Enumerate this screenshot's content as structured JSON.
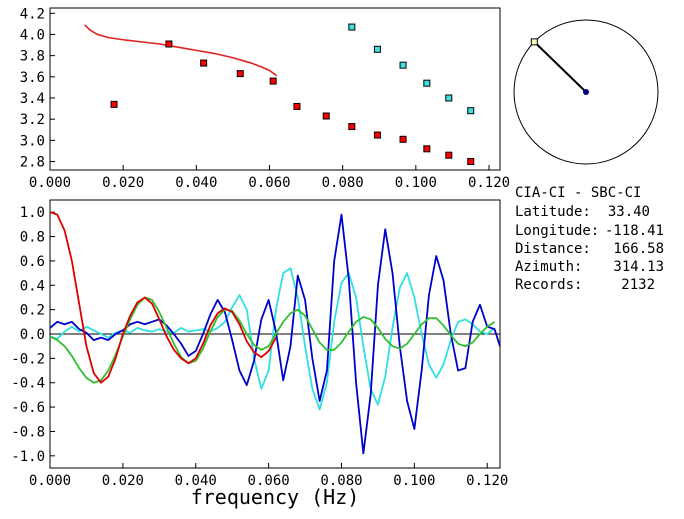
{
  "chart_data": [
    {
      "type": "scatter",
      "x_ticks": [
        "0.000",
        "0.020",
        "0.040",
        "0.060",
        "0.080",
        "0.100",
        "0.120"
      ],
      "y_ticks": [
        "2.8",
        "3.0",
        "3.2",
        "3.4",
        "3.6",
        "3.8",
        "4.0",
        "4.2"
      ],
      "xlim": [
        0.0,
        0.123
      ],
      "ylim": [
        2.72,
        4.25
      ],
      "grid": false,
      "colors": {
        "red_points": "#ff0000",
        "cyan_points": "#40e0e0",
        "curve": "#dd2222"
      },
      "series": [
        {
          "x": [
            0.0175,
            0.0325,
            0.042,
            0.052,
            0.061,
            0.0675,
            0.0755,
            0.0825,
            0.0895,
            0.0965,
            0.103,
            0.109,
            0.115
          ],
          "y": [
            3.34,
            3.91,
            3.73,
            3.63,
            3.56,
            3.32,
            3.23,
            3.13,
            3.05,
            3.01,
            2.92,
            2.86,
            2.8
          ]
        },
        {
          "x": [
            0.0825,
            0.0895,
            0.0965,
            0.103,
            0.109,
            0.115
          ],
          "y": [
            4.07,
            3.86,
            3.71,
            3.54,
            3.4,
            3.28
          ]
        },
        {
          "type": "line",
          "x": [
            0.0095,
            0.011,
            0.013,
            0.016,
            0.02,
            0.025,
            0.03,
            0.035,
            0.04,
            0.045,
            0.05,
            0.055,
            0.058,
            0.06,
            0.062
          ],
          "y": [
            4.09,
            4.04,
            4.0,
            3.97,
            3.95,
            3.93,
            3.91,
            3.88,
            3.85,
            3.82,
            3.78,
            3.73,
            3.69,
            3.66,
            3.61
          ]
        }
      ]
    },
    {
      "type": "line",
      "xlabel": "frequency (Hz)",
      "x_ticks": [
        "0.000",
        "0.020",
        "0.040",
        "0.060",
        "0.080",
        "0.100",
        "0.120"
      ],
      "y_ticks": [
        "1.0",
        "0.8",
        "0.6",
        "0.4",
        "0.2",
        "0.0",
        "-0.2",
        "-0.4",
        "-0.6",
        "-0.8",
        "-1.0"
      ],
      "xlim": [
        0.0,
        0.1235
      ],
      "ylim": [
        -1.1,
        1.1
      ],
      "grid": false,
      "zero_line": true,
      "colors": {
        "red": "#dd0000",
        "green": "#30c030",
        "blue": "#0000cc",
        "cyan": "#30e0e0"
      },
      "series": [
        {
          "x": [
            0.0,
            0.002,
            0.004,
            0.006,
            0.008,
            0.01,
            0.012,
            0.014,
            0.016,
            0.018,
            0.02,
            0.022,
            0.024,
            0.026,
            0.028,
            0.03,
            0.032,
            0.034,
            0.036,
            0.038,
            0.04,
            0.042,
            0.044,
            0.046,
            0.048,
            0.05,
            0.052,
            0.054,
            0.056,
            0.058,
            0.06,
            0.062
          ],
          "y": [
            1.0,
            0.98,
            0.85,
            0.6,
            0.25,
            -0.1,
            -0.32,
            -0.4,
            -0.35,
            -0.2,
            0.0,
            0.15,
            0.26,
            0.3,
            0.25,
            0.12,
            -0.02,
            -0.13,
            -0.2,
            -0.24,
            -0.2,
            -0.08,
            0.07,
            0.17,
            0.21,
            0.18,
            0.08,
            -0.06,
            -0.15,
            -0.19,
            -0.14,
            -0.03
          ]
        },
        {
          "x": [
            0.0,
            0.002,
            0.004,
            0.006,
            0.008,
            0.01,
            0.012,
            0.014,
            0.016,
            0.018,
            0.02,
            0.022,
            0.024,
            0.026,
            0.028,
            0.03,
            0.032,
            0.034,
            0.036,
            0.038,
            0.04,
            0.042,
            0.044,
            0.046,
            0.048,
            0.05,
            0.052,
            0.054,
            0.056,
            0.058,
            0.06,
            0.062,
            0.064,
            0.066,
            0.068,
            0.07,
            0.072,
            0.074,
            0.076,
            0.078,
            0.08,
            0.082,
            0.084,
            0.086,
            0.088,
            0.09,
            0.092,
            0.094,
            0.096,
            0.098,
            0.1,
            0.102,
            0.104,
            0.106,
            0.108,
            0.11,
            0.112,
            0.114,
            0.116,
            0.118,
            0.12,
            0.122
          ],
          "y": [
            -0.02,
            -0.05,
            -0.1,
            -0.18,
            -0.28,
            -0.36,
            -0.4,
            -0.38,
            -0.3,
            -0.17,
            -0.02,
            0.12,
            0.24,
            0.3,
            0.28,
            0.18,
            0.05,
            -0.08,
            -0.19,
            -0.24,
            -0.22,
            -0.12,
            0.02,
            0.14,
            0.2,
            0.19,
            0.11,
            0.0,
            -0.09,
            -0.13,
            -0.1,
            0.0,
            0.1,
            0.17,
            0.2,
            0.15,
            0.04,
            -0.07,
            -0.13,
            -0.13,
            -0.07,
            0.02,
            0.1,
            0.14,
            0.12,
            0.05,
            -0.04,
            -0.1,
            -0.12,
            -0.08,
            0.0,
            0.08,
            0.13,
            0.13,
            0.07,
            -0.01,
            -0.08,
            -0.1,
            -0.07,
            0.0,
            0.06,
            0.1
          ]
        },
        {
          "x": [
            0.0,
            0.002,
            0.004,
            0.006,
            0.008,
            0.01,
            0.012,
            0.014,
            0.016,
            0.018,
            0.02,
            0.022,
            0.024,
            0.026,
            0.028,
            0.03,
            0.032,
            0.034,
            0.036,
            0.038,
            0.04,
            0.042,
            0.044,
            0.046,
            0.048,
            0.05,
            0.052,
            0.054,
            0.056,
            0.058,
            0.06,
            0.062,
            0.064,
            0.066,
            0.068,
            0.07,
            0.072,
            0.074,
            0.076,
            0.078,
            0.08,
            0.082,
            0.084,
            0.086,
            0.088,
            0.09,
            0.092,
            0.094,
            0.096,
            0.098,
            0.1,
            0.102,
            0.104,
            0.106,
            0.108,
            0.11,
            0.112,
            0.114,
            0.116,
            0.118,
            0.12,
            0.122,
            0.1235
          ],
          "y": [
            0.05,
            0.1,
            0.08,
            0.1,
            0.04,
            0.01,
            -0.05,
            -0.03,
            -0.05,
            0.0,
            0.03,
            0.08,
            0.1,
            0.08,
            0.1,
            0.12,
            0.07,
            0.0,
            -0.08,
            -0.18,
            -0.14,
            0.0,
            0.16,
            0.28,
            0.18,
            -0.05,
            -0.3,
            -0.42,
            -0.22,
            0.12,
            0.28,
            0.02,
            -0.38,
            -0.1,
            0.48,
            0.28,
            -0.2,
            -0.55,
            -0.3,
            0.6,
            0.98,
            0.45,
            -0.4,
            -0.98,
            -0.5,
            0.4,
            0.86,
            0.5,
            -0.1,
            -0.55,
            -0.78,
            -0.3,
            0.32,
            0.64,
            0.44,
            0.0,
            -0.3,
            -0.28,
            0.1,
            0.24,
            0.06,
            0.04,
            -0.1
          ]
        },
        {
          "x": [
            0.0,
            0.002,
            0.004,
            0.006,
            0.008,
            0.01,
            0.012,
            0.014,
            0.016,
            0.018,
            0.02,
            0.022,
            0.024,
            0.026,
            0.028,
            0.03,
            0.032,
            0.034,
            0.036,
            0.038,
            0.04,
            0.042,
            0.044,
            0.046,
            0.048,
            0.05,
            0.052,
            0.054,
            0.056,
            0.058,
            0.06,
            0.062,
            0.064,
            0.066,
            0.068,
            0.07,
            0.072,
            0.074,
            0.076,
            0.078,
            0.08,
            0.082,
            0.084,
            0.086,
            0.088,
            0.09,
            0.092,
            0.094,
            0.096,
            0.098,
            0.1,
            0.102,
            0.104,
            0.106,
            0.108,
            0.11,
            0.112,
            0.114,
            0.116,
            0.118,
            0.12,
            0.122
          ],
          "y": [
            -0.02,
            -0.04,
            0.02,
            0.06,
            0.02,
            0.06,
            0.03,
            0.0,
            -0.03,
            0.01,
            0.03,
            0.01,
            0.05,
            0.03,
            0.02,
            0.04,
            0.02,
            0.01,
            0.05,
            0.02,
            0.03,
            0.04,
            0.02,
            0.05,
            0.1,
            0.22,
            0.32,
            0.2,
            -0.2,
            -0.45,
            -0.3,
            0.2,
            0.5,
            0.54,
            0.3,
            -0.1,
            -0.45,
            -0.62,
            -0.4,
            0.1,
            0.42,
            0.5,
            0.3,
            -0.1,
            -0.45,
            -0.58,
            -0.35,
            0.05,
            0.38,
            0.5,
            0.3,
            0.0,
            -0.25,
            -0.36,
            -0.25,
            -0.05,
            0.1,
            0.12,
            0.08,
            0.02,
            0.0,
            0.05
          ]
        }
      ]
    }
  ],
  "compass": {
    "azimuth_deg": 314.13,
    "colors": {
      "needle": "#000000",
      "center_dot": "#000080",
      "tip_marker": "#ffffc0"
    }
  },
  "info": {
    "stations": "CIA-CI  - SBC-CI",
    "latitude_label": "Latitude:",
    "latitude_value": "33.40",
    "longitude_label": "Longitude:",
    "longitude_value": "-118.41",
    "distance_label": "Distance:",
    "distance_value": "166.58",
    "azimuth_label": "Azimuth:",
    "azimuth_value": "314.13",
    "records_label": "Records:",
    "records_value": "2132"
  }
}
